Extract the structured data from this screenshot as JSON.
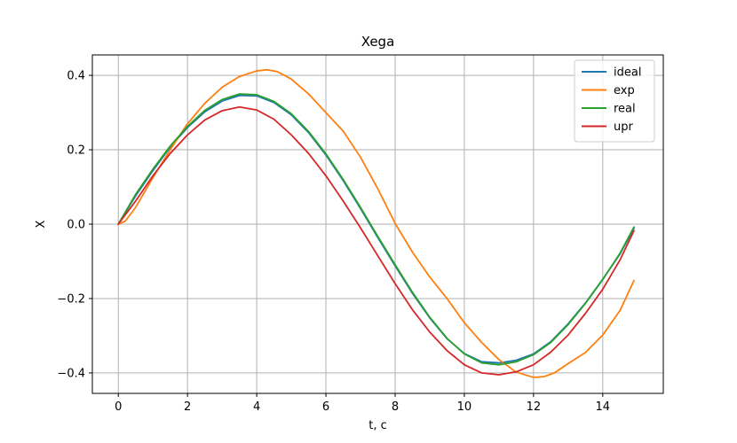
{
  "chart_data": {
    "type": "line",
    "title": "Xega",
    "xlabel": "t, c",
    "ylabel": "X",
    "xlim": [
      -0.75,
      15.75
    ],
    "ylim": [
      -0.455,
      0.455
    ],
    "xticks": [
      0,
      2,
      4,
      6,
      8,
      10,
      12,
      14
    ],
    "xtick_labels": [
      "0",
      "2",
      "4",
      "6",
      "8",
      "10",
      "12",
      "14"
    ],
    "yticks": [
      -0.4,
      -0.2,
      0.0,
      0.2,
      0.4
    ],
    "ytick_labels": [
      "−0.4",
      "−0.2",
      "0.0",
      "0.2",
      "0.4"
    ],
    "grid": true,
    "legend_position": "top-right",
    "series": [
      {
        "name": "ideal",
        "color": "#1f77b4",
        "x": [
          0,
          0.5,
          1,
          1.5,
          2,
          2.5,
          3,
          3.5,
          4,
          4.5,
          5,
          5.5,
          6,
          6.5,
          7,
          7.5,
          8,
          8.5,
          9,
          9.5,
          10,
          10.5,
          11,
          11.5,
          12,
          12.5,
          13,
          13.5,
          14,
          14.5,
          14.9
        ],
        "y": [
          0.0,
          0.076,
          0.144,
          0.207,
          0.26,
          0.302,
          0.331,
          0.346,
          0.345,
          0.327,
          0.294,
          0.246,
          0.186,
          0.117,
          0.042,
          -0.036,
          -0.112,
          -0.186,
          -0.252,
          -0.308,
          -0.348,
          -0.37,
          -0.373,
          -0.366,
          -0.349,
          -0.316,
          -0.268,
          -0.212,
          -0.148,
          -0.08,
          -0.012
        ]
      },
      {
        "name": "exp",
        "color": "#ff7f0e",
        "x": [
          0,
          0.2,
          0.5,
          1,
          1.5,
          2,
          2.5,
          3,
          3.5,
          4,
          4.3,
          4.6,
          5,
          5.5,
          6,
          6.5,
          7,
          7.5,
          8,
          8.5,
          9,
          9.5,
          10,
          10.5,
          11,
          11.5,
          12,
          12.3,
          12.6,
          13,
          13.5,
          14,
          14.5,
          14.9
        ],
        "y": [
          0.0,
          0.008,
          0.045,
          0.125,
          0.2,
          0.27,
          0.325,
          0.368,
          0.397,
          0.412,
          0.415,
          0.41,
          0.39,
          0.35,
          0.3,
          0.25,
          0.18,
          0.095,
          0.002,
          -0.075,
          -0.142,
          -0.2,
          -0.265,
          -0.318,
          -0.364,
          -0.398,
          -0.412,
          -0.41,
          -0.4,
          -0.375,
          -0.345,
          -0.298,
          -0.232,
          -0.152
        ]
      },
      {
        "name": "real",
        "color": "#2ca02c",
        "x": [
          0,
          0.5,
          1,
          1.5,
          2,
          2.5,
          3,
          3.5,
          4,
          4.5,
          5,
          5.5,
          6,
          6.5,
          7,
          7.5,
          8,
          8.5,
          9,
          9.5,
          10,
          10.5,
          11,
          11.5,
          12,
          12.5,
          13,
          13.5,
          14,
          14.5,
          14.9
        ],
        "y": [
          0.0,
          0.08,
          0.148,
          0.21,
          0.263,
          0.306,
          0.335,
          0.35,
          0.348,
          0.33,
          0.297,
          0.249,
          0.189,
          0.12,
          0.045,
          -0.033,
          -0.109,
          -0.183,
          -0.25,
          -0.307,
          -0.349,
          -0.373,
          -0.378,
          -0.37,
          -0.351,
          -0.318,
          -0.27,
          -0.213,
          -0.149,
          -0.078,
          -0.008
        ]
      },
      {
        "name": "upr",
        "color": "#d62728",
        "x": [
          0,
          0.5,
          1,
          1.5,
          2,
          2.5,
          3,
          3.5,
          4,
          4.5,
          5,
          5.5,
          6,
          6.5,
          7,
          7.5,
          8,
          8.5,
          9,
          9.5,
          10,
          10.5,
          11,
          11.5,
          12,
          12.5,
          13,
          13.5,
          14,
          14.5,
          14.9
        ],
        "y": [
          0.0,
          0.062,
          0.13,
          0.19,
          0.24,
          0.28,
          0.305,
          0.315,
          0.307,
          0.282,
          0.24,
          0.19,
          0.13,
          0.062,
          -0.01,
          -0.085,
          -0.16,
          -0.23,
          -0.29,
          -0.34,
          -0.378,
          -0.4,
          -0.405,
          -0.397,
          -0.378,
          -0.344,
          -0.298,
          -0.24,
          -0.175,
          -0.096,
          -0.018
        ]
      }
    ]
  }
}
